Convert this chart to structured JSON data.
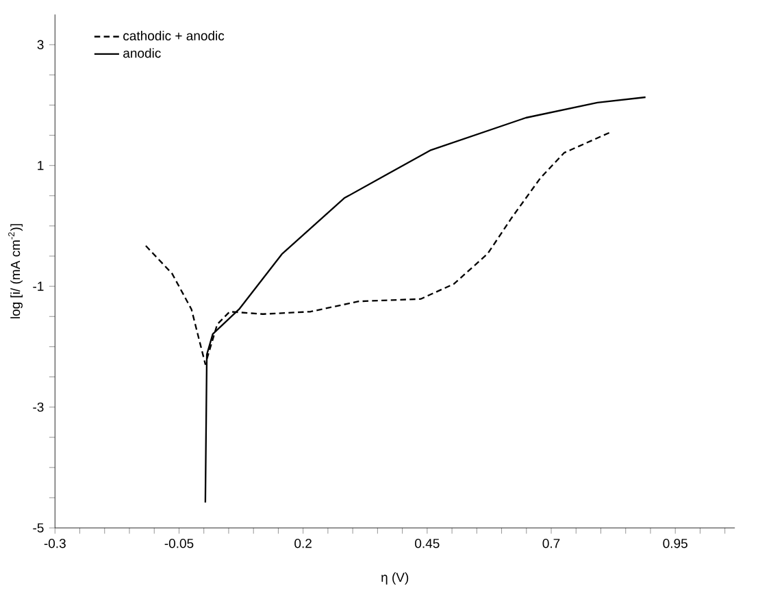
{
  "chart_data": {
    "type": "line",
    "xlabel": "η (V)",
    "ylabel": "log [i/ (mA cm$^{-2}$)]",
    "xlim": [
      -0.3,
      1.07
    ],
    "xticks": [
      -0.3,
      {
        "value": -0.25,
        "label": null
      },
      {
        "value": -0.2,
        "label": null
      },
      {
        "value": -0.15,
        "label": null
      },
      {
        "value": -0.1,
        "label": null
      },
      -0.05,
      {
        "value": 0,
        "label": null
      },
      {
        "value": 0.05,
        "label": null
      },
      {
        "value": 0.1,
        "label": null
      },
      {
        "value": 0.15,
        "label": null
      },
      0.2,
      {
        "value": 0.25,
        "label": null
      },
      {
        "value": 0.3,
        "label": null
      },
      {
        "value": 0.35,
        "label": null
      },
      {
        "value": 0.4,
        "label": null
      },
      0.45,
      {
        "value": 0.5,
        "label": null
      },
      {
        "value": 0.55,
        "label": null
      },
      {
        "value": 0.6,
        "label": null
      },
      {
        "value": 0.65,
        "label": null
      },
      0.7,
      {
        "value": 0.75,
        "label": null
      },
      {
        "value": 0.8,
        "label": null
      },
      {
        "value": 0.85,
        "label": null
      },
      {
        "value": 0.9,
        "label": null
      },
      0.95,
      {
        "value": 1,
        "label": null
      },
      {
        "value": 1.05,
        "label": null
      }
    ],
    "ylim": [
      -5,
      3.5
    ],
    "yticks": [
      -5,
      {
        "value": -4.5,
        "label": null
      },
      {
        "value": -4,
        "label": null
      },
      {
        "value": -3.5,
        "label": null
      },
      -3,
      {
        "value": -2.5,
        "label": null
      },
      {
        "value": -2,
        "label": null
      },
      {
        "value": -1.5,
        "label": null
      },
      -1,
      {
        "value": -0.5,
        "label": null
      },
      {
        "value": 0,
        "label": null
      },
      {
        "value": 0.5,
        "label": null
      },
      1,
      {
        "value": 1.5,
        "label": null
      },
      {
        "value": 2,
        "label": null
      },
      {
        "value": 2.5,
        "label": null
      },
      3
    ],
    "legend": "top left",
    "grid": false,
    "series": [
      {
        "name": "cathodic + anodic",
        "color": "#000000",
        "line_style": "dashed",
        "x": [
          -0.117,
          -0.064,
          -0.025,
          0.003,
          0.027,
          0.052,
          0.119,
          0.215,
          0.312,
          0.437,
          0.504,
          0.572,
          0.62,
          0.678,
          0.726,
          0.822
        ],
        "values": [
          -0.33,
          -0.79,
          -1.38,
          -2.29,
          -1.63,
          -1.42,
          -1.46,
          -1.42,
          -1.25,
          -1.21,
          -0.96,
          -0.46,
          0.13,
          0.79,
          1.21,
          1.56
        ]
      },
      {
        "name": "anodic",
        "color": "#000000",
        "line_style": "solid",
        "x": [
          0.003,
          0.006,
          0.018,
          0.071,
          0.158,
          0.283,
          0.456,
          0.649,
          0.793,
          0.89
        ],
        "values": [
          -4.58,
          -2.13,
          -1.79,
          -1.38,
          -0.46,
          0.46,
          1.25,
          1.79,
          2.04,
          2.13
        ]
      }
    ]
  }
}
